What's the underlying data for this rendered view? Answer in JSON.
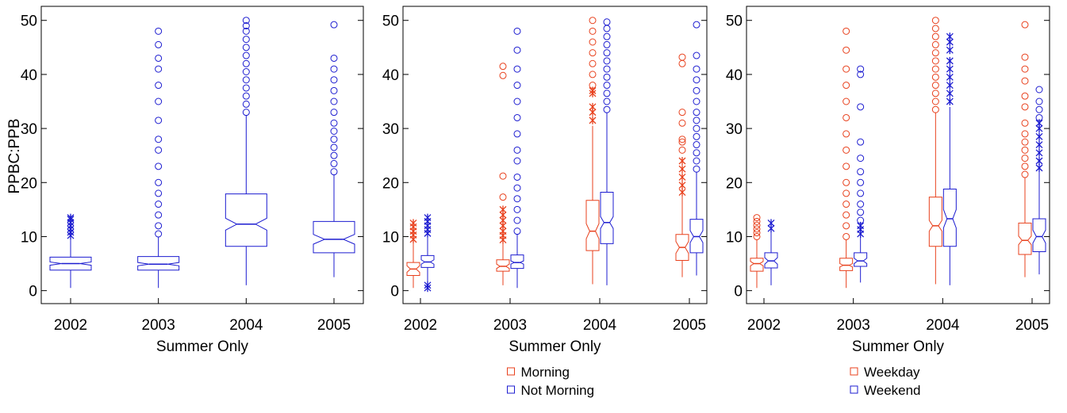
{
  "chart_data": [
    {
      "type": "boxplot",
      "ylabel": "PPBC:PPB",
      "xlabel": "Summer Only",
      "categories": [
        "2002",
        "2003",
        "2004",
        "2005"
      ],
      "ylim": [
        -2.4,
        52.6
      ],
      "yticks": [
        0,
        10,
        20,
        30,
        40,
        50
      ],
      "series": [
        {
          "color": "#1c1cd0",
          "boxes": [
            {
              "low": 0.5,
              "q1": 3.8,
              "notch_low": 4.7,
              "median": 5,
              "notch_high": 5.3,
              "q3": 6.2,
              "high": 9.8,
              "near": [
                10.2,
                10.8,
                11.4,
                12,
                12.6,
                13.2,
                13.5
              ],
              "far": []
            },
            {
              "low": 0.5,
              "q1": 3.8,
              "notch_low": 4.6,
              "median": 4.9,
              "notch_high": 5.2,
              "q3": 6.3,
              "high": 10,
              "near": [],
              "far": [
                10.5,
                12,
                14,
                16,
                18,
                20,
                23,
                26,
                28,
                31.5,
                35,
                38,
                41,
                43,
                45.5,
                48
              ]
            },
            {
              "low": 1,
              "q1": 8.2,
              "notch_low": 11.2,
              "median": 12.3,
              "notch_high": 13.4,
              "q3": 17.9,
              "high": 32.5,
              "near": [],
              "far": [
                33,
                34.5,
                36,
                37.5,
                39,
                40.5,
                42,
                43.5,
                45,
                46.5,
                48,
                49,
                50
              ]
            },
            {
              "low": 2.5,
              "q1": 7,
              "notch_low": 8.6,
              "median": 9.5,
              "notch_high": 10.4,
              "q3": 12.8,
              "high": 21.5,
              "near": [],
              "far": [
                22,
                23.5,
                25,
                26.5,
                28,
                29.5,
                31,
                33,
                35,
                37,
                39,
                41,
                43,
                49.2
              ]
            }
          ]
        }
      ]
    },
    {
      "type": "boxplot",
      "xlabel": "Summer Only",
      "categories": [
        "2002",
        "2003",
        "2004",
        "2005"
      ],
      "ylim": [
        -2.4,
        52.6
      ],
      "yticks": [
        0,
        10,
        20,
        30,
        40,
        50
      ],
      "series": [
        {
          "name": "Morning",
          "color": "#e8401c",
          "boxes": [
            {
              "low": 0.5,
              "q1": 2.8,
              "notch_low": 3.4,
              "median": 4,
              "notch_high": 4.6,
              "q3": 5.2,
              "high": 8.8,
              "near": [
                9.5,
                10.3,
                11,
                11.8,
                12.5
              ],
              "far": []
            },
            {
              "low": 1,
              "q1": 3.6,
              "notch_low": 4.1,
              "median": 4.5,
              "notch_high": 4.9,
              "q3": 5.7,
              "high": 9,
              "near": [
                9.4,
                10.2,
                11,
                12,
                13,
                14,
                15
              ],
              "far": [
                17.3,
                21.2,
                39.8,
                41.5
              ]
            },
            {
              "low": 1.2,
              "q1": 7.4,
              "notch_low": 9.6,
              "median": 11,
              "notch_high": 12.4,
              "q3": 16.7,
              "high": 30.5,
              "near": [
                31.5,
                33,
                34,
                36.5,
                37
              ],
              "far": [
                38,
                40,
                42,
                44,
                46,
                48,
                50
              ]
            },
            {
              "low": 2.5,
              "q1": 5.6,
              "notch_low": 6.9,
              "median": 8,
              "notch_high": 9.1,
              "q3": 10.4,
              "high": 17.5,
              "near": [
                18.2,
                19.5,
                21,
                22.5,
                24
              ],
              "far": [
                26,
                27.5,
                28,
                31,
                33,
                42,
                43.2
              ]
            }
          ]
        },
        {
          "name": "Not Morning",
          "color": "#1c1cd0",
          "boxes": [
            {
              "low": 1.5,
              "q1": 4.3,
              "notch_low": 4.9,
              "median": 5.3,
              "notch_high": 5.7,
              "q3": 6.5,
              "high": 10,
              "near": [
                0.5,
                1,
                10.6,
                11.3,
                12,
                12.8,
                13.5
              ],
              "far": []
            },
            {
              "low": 0.5,
              "q1": 4.1,
              "notch_low": 4.9,
              "median": 5.2,
              "notch_high": 5.5,
              "q3": 6.6,
              "high": 10.5,
              "near": [],
              "far": [
                11,
                13,
                15,
                17,
                19,
                21,
                24,
                26,
                29,
                32,
                35,
                38,
                41,
                44.5,
                48
              ]
            },
            {
              "low": 1,
              "q1": 8.7,
              "notch_low": 11.5,
              "median": 12.6,
              "notch_high": 13.7,
              "q3": 18.2,
              "high": 33,
              "near": [],
              "far": [
                33.5,
                35,
                36.5,
                38,
                39.5,
                41,
                42.5,
                44,
                45.5,
                47,
                48.5,
                49.7
              ]
            },
            {
              "low": 2.8,
              "q1": 7,
              "notch_low": 8.9,
              "median": 10,
              "notch_high": 11.1,
              "q3": 13.2,
              "high": 22,
              "near": [],
              "far": [
                22.5,
                24,
                25.5,
                27,
                28.5,
                30,
                31.5,
                33,
                35,
                37,
                39,
                41,
                43.5,
                49.2
              ]
            }
          ]
        }
      ],
      "legend": "bottom"
    },
    {
      "type": "boxplot",
      "xlabel": "Summer Only",
      "categories": [
        "2002",
        "2003",
        "2004",
        "2005"
      ],
      "ylim": [
        -2.4,
        52.6
      ],
      "yticks": [
        0,
        10,
        20,
        30,
        40,
        50
      ],
      "series": [
        {
          "name": "Weekday",
          "color": "#e8401c",
          "boxes": [
            {
              "low": 0.5,
              "q1": 3.6,
              "notch_low": 4.6,
              "median": 5,
              "notch_high": 5.4,
              "q3": 6,
              "high": 9.5,
              "near": [],
              "far": [
                10,
                10.7,
                11.4,
                12.1,
                12.8,
                13.5
              ]
            },
            {
              "low": 0.5,
              "q1": 3.7,
              "notch_low": 4.4,
              "median": 4.7,
              "notch_high": 5,
              "q3": 6,
              "high": 9.5,
              "near": [],
              "far": [
                10,
                12,
                14,
                16,
                18,
                20,
                23,
                26,
                29,
                32,
                35,
                38,
                41,
                44.5,
                48
              ]
            },
            {
              "low": 1.2,
              "q1": 8.2,
              "notch_low": 11,
              "median": 12,
              "notch_high": 13,
              "q3": 17.3,
              "high": 33,
              "near": [],
              "far": [
                33.5,
                35,
                36.5,
                38,
                39.5,
                41,
                42.5,
                44,
                45.5,
                47,
                48.5,
                50
              ]
            },
            {
              "low": 2.5,
              "q1": 6.7,
              "notch_low": 8.5,
              "median": 9.3,
              "notch_high": 10.1,
              "q3": 12.5,
              "high": 21,
              "near": [],
              "far": [
                21.5,
                23,
                24.5,
                26,
                27.5,
                29,
                31,
                34,
                36,
                38.8,
                41,
                43.2,
                49.2
              ]
            }
          ]
        },
        {
          "name": "Weekend",
          "color": "#1c1cd0",
          "boxes": [
            {
              "low": 1,
              "q1": 4.2,
              "notch_low": 4.9,
              "median": 5.5,
              "notch_high": 6.1,
              "q3": 7,
              "high": 11,
              "near": [
                11.5,
                12.5
              ],
              "far": []
            },
            {
              "low": 1.5,
              "q1": 4.5,
              "notch_low": 5,
              "median": 5.5,
              "notch_high": 6,
              "q3": 7,
              "high": 10,
              "near": [
                10.5,
                11.3,
                12
              ],
              "far": [
                13,
                14.5,
                16,
                18,
                20,
                22,
                24.5,
                27.5,
                34,
                40,
                41
              ]
            },
            {
              "low": 1,
              "q1": 8.2,
              "notch_low": 11.6,
              "median": 13.3,
              "notch_high": 15,
              "q3": 18.8,
              "high": 34,
              "near": [
                35,
                36.5,
                38,
                39.5,
                41,
                42.5,
                44.5,
                46,
                47
              ],
              "far": []
            },
            {
              "low": 3,
              "q1": 7.2,
              "notch_low": 8.8,
              "median": 10,
              "notch_high": 11.2,
              "q3": 13.3,
              "high": 22,
              "near": [
                22.7,
                24,
                25.5,
                27,
                28.5,
                30,
                31
              ],
              "far": [
                32,
                33.5,
                35,
                37.2
              ]
            }
          ]
        }
      ],
      "legend": "bottom"
    }
  ]
}
